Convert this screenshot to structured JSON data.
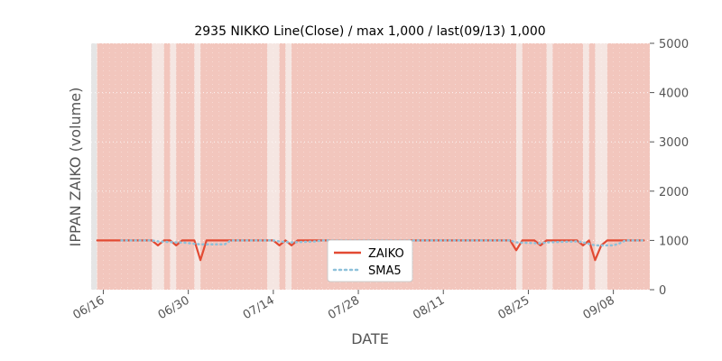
{
  "chart_data": {
    "type": "line",
    "title": "2935 NIKKO Line(Close) / max 1,000 / last(09/13) 1,000",
    "xlabel": "DATE",
    "ylabel": "IPPAN ZAIKO (volume)",
    "ylim": [
      0,
      5000
    ],
    "y_ticks": [
      0,
      1000,
      2000,
      3000,
      4000,
      5000
    ],
    "y_axis_side": "right",
    "xlim": [
      "06/14",
      "09/14"
    ],
    "x_ticks": [
      {
        "date": "06/16",
        "label": "06/16"
      },
      {
        "date": "06/30",
        "label": "06/30"
      },
      {
        "date": "07/14",
        "label": "07/14"
      },
      {
        "date": "07/28",
        "label": "07/28"
      },
      {
        "date": "08/11",
        "label": "08/11"
      },
      {
        "date": "08/25",
        "label": "08/25"
      },
      {
        "date": "09/08",
        "label": "09/08"
      }
    ],
    "grid": true,
    "legend_position": "bottom-center",
    "plot_background": "#e5e5e5",
    "highlight_color": "#f2c6bd",
    "highlight_gap_color": "#f5e6e2",
    "highlight_spans": [
      [
        "06/15",
        "06/24"
      ],
      [
        "06/26",
        "06/27"
      ],
      [
        "06/28",
        "07/01"
      ],
      [
        "07/02",
        "07/13"
      ],
      [
        "07/15",
        "07/16"
      ],
      [
        "07/17",
        "08/23"
      ],
      [
        "08/24",
        "08/28"
      ],
      [
        "08/29",
        "09/03"
      ],
      [
        "09/04",
        "09/05"
      ],
      [
        "09/07",
        "09/14"
      ]
    ],
    "series": [
      {
        "name": "ZAIKO",
        "color": "#e24a33",
        "style": "solid",
        "points": [
          [
            "06/15",
            1000
          ],
          [
            "06/24",
            1000
          ],
          [
            "06/25",
            900
          ],
          [
            "06/26",
            1000
          ],
          [
            "06/27",
            1000
          ],
          [
            "06/28",
            900
          ],
          [
            "06/29",
            1000
          ],
          [
            "07/01",
            1000
          ],
          [
            "07/02",
            600
          ],
          [
            "07/03",
            1000
          ],
          [
            "07/14",
            1000
          ],
          [
            "07/15",
            900
          ],
          [
            "07/16",
            1000
          ],
          [
            "07/17",
            900
          ],
          [
            "07/18",
            1000
          ],
          [
            "08/22",
            1000
          ],
          [
            "08/23",
            800
          ],
          [
            "08/24",
            1000
          ],
          [
            "08/26",
            1000
          ],
          [
            "08/27",
            900
          ],
          [
            "08/28",
            1000
          ],
          [
            "09/02",
            1000
          ],
          [
            "09/03",
            900
          ],
          [
            "09/04",
            1000
          ],
          [
            "09/05",
            600
          ],
          [
            "09/06",
            900
          ],
          [
            "09/07",
            1000
          ],
          [
            "09/13",
            1000
          ]
        ]
      },
      {
        "name": "SMA5",
        "color": "#8ec1da",
        "style": "dotted",
        "points": [
          [
            "06/19",
            1000
          ],
          [
            "06/24",
            1000
          ],
          [
            "06/25",
            980
          ],
          [
            "06/28",
            960
          ],
          [
            "06/29",
            960
          ],
          [
            "07/02",
            920
          ],
          [
            "07/03",
            920
          ],
          [
            "07/06",
            920
          ],
          [
            "07/07",
            1000
          ],
          [
            "07/14",
            1000
          ],
          [
            "07/15",
            980
          ],
          [
            "07/17",
            960
          ],
          [
            "07/21",
            980
          ],
          [
            "07/22",
            1000
          ],
          [
            "08/22",
            1000
          ],
          [
            "08/23",
            960
          ],
          [
            "08/27",
            940
          ],
          [
            "08/28",
            960
          ],
          [
            "09/02",
            980
          ],
          [
            "09/03",
            960
          ],
          [
            "09/05",
            900
          ],
          [
            "09/06",
            900
          ],
          [
            "09/08",
            900
          ],
          [
            "09/09",
            940
          ],
          [
            "09/10",
            1000
          ],
          [
            "09/13",
            1000
          ]
        ]
      }
    ]
  }
}
